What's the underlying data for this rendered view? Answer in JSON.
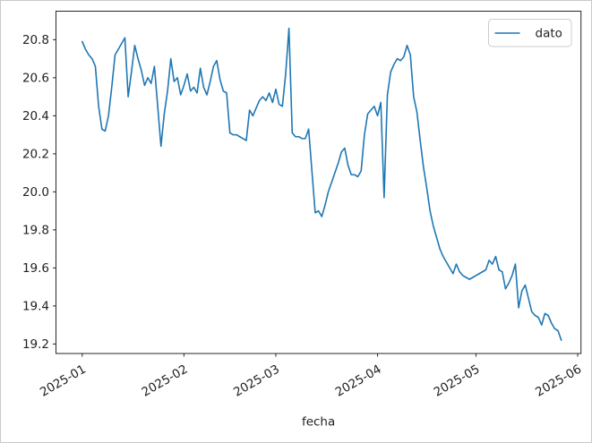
{
  "chart_data": {
    "type": "line",
    "title": "",
    "xlabel": "fecha",
    "ylabel": "",
    "grid": false,
    "legend_position": "upper right",
    "x_start_date": "2025-01-01",
    "x_end_date": "2025-05-27",
    "x_frequency": "daily",
    "xlim_days": [
      -8,
      152
    ],
    "ylim": [
      19.15,
      20.95
    ],
    "yticks": [
      19.2,
      19.4,
      19.6,
      19.8,
      20.0,
      20.2,
      20.4,
      20.6,
      20.8
    ],
    "xticks": [
      {
        "label": "2025-01",
        "day_offset": 0
      },
      {
        "label": "2025-02",
        "day_offset": 31
      },
      {
        "label": "2025-03",
        "day_offset": 59
      },
      {
        "label": "2025-04",
        "day_offset": 90
      },
      {
        "label": "2025-05",
        "day_offset": 120
      },
      {
        "label": "2025-06",
        "day_offset": 151
      }
    ],
    "series": [
      {
        "name": "dato",
        "color": "#1f77b4",
        "values": [
          20.79,
          20.75,
          20.72,
          20.7,
          20.66,
          20.45,
          20.33,
          20.32,
          20.4,
          20.55,
          20.72,
          20.75,
          20.78,
          20.81,
          20.5,
          20.63,
          20.77,
          20.7,
          20.64,
          20.56,
          20.6,
          20.57,
          20.66,
          20.45,
          20.24,
          20.41,
          20.53,
          20.7,
          20.58,
          20.6,
          20.51,
          20.56,
          20.62,
          20.53,
          20.55,
          20.52,
          20.65,
          20.55,
          20.51,
          20.58,
          20.66,
          20.69,
          20.59,
          20.53,
          20.52,
          20.31,
          20.3,
          20.3,
          20.29,
          20.28,
          20.27,
          20.43,
          20.4,
          20.44,
          20.48,
          20.5,
          20.48,
          20.52,
          20.47,
          20.54,
          20.46,
          20.45,
          20.62,
          20.86,
          20.31,
          20.29,
          20.29,
          20.28,
          20.28,
          20.33,
          20.11,
          19.89,
          19.9,
          19.87,
          19.93,
          20.0,
          20.05,
          20.1,
          20.15,
          20.21,
          20.23,
          20.14,
          20.09,
          20.09,
          20.08,
          20.11,
          20.3,
          20.41,
          20.43,
          20.45,
          20.4,
          20.47,
          19.97,
          20.51,
          20.63,
          20.67,
          20.7,
          20.69,
          20.71,
          20.77,
          20.72,
          20.5,
          20.42,
          20.27,
          20.13,
          20.02,
          19.9,
          19.82,
          19.76,
          19.7,
          19.66,
          19.63,
          19.6,
          19.57,
          19.62,
          19.58,
          19.56,
          19.55,
          19.54,
          19.55,
          19.56,
          19.57,
          19.58,
          19.59,
          19.64,
          19.62,
          19.66,
          19.59,
          19.58,
          19.49,
          19.52,
          19.56,
          19.62,
          19.39,
          19.48,
          19.51,
          19.44,
          19.37,
          19.35,
          19.34,
          19.3,
          19.36,
          19.35,
          19.31,
          19.28,
          19.27,
          19.22
        ]
      }
    ],
    "axis_color": "#262626",
    "legend_edge_color": "#cccccc"
  }
}
